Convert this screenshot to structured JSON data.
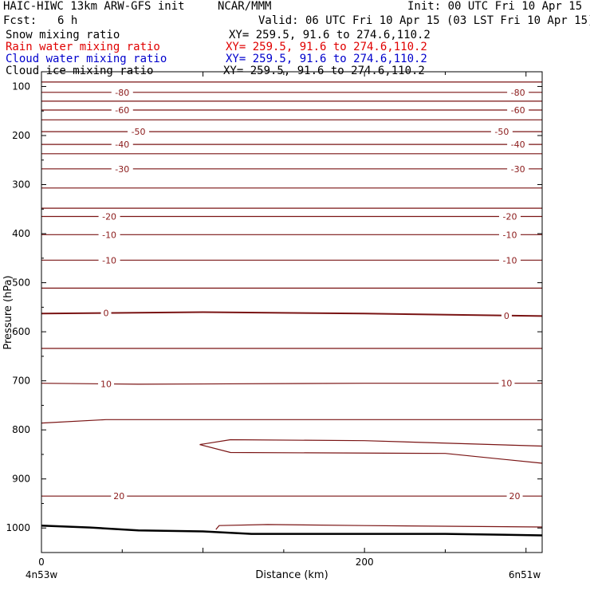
{
  "header": {
    "title_left": "HAIC-HIWC 13km ARW-GFS init",
    "title_center": "NCAR/MMM",
    "init": "Init: 00 UTC Fri 10 Apr 15",
    "fcst_label": "Fcst:",
    "fcst_value": "6 h",
    "valid": "Valid: 06 UTC Fri 10 Apr 15 (03 LST Fri 10 Apr 15)"
  },
  "legend": [
    {
      "name": "Snow mixing ratio",
      "xy": "XY= 259.5, 91.6 to 274.6,110.2",
      "color": "#000000"
    },
    {
      "name": "Rain water mixing ratio",
      "xy": "XY= 259.5, 91.6 to 274.6,110.2",
      "color": "#e00000"
    },
    {
      "name": "Cloud water mixing ratio",
      "xy": "XY= 259.5, 91.6 to 274.6,110.2",
      "color": "#0000cc"
    },
    {
      "name": "Cloud ice mixing ratio",
      "xy": "XY= 259.5, 91.6 to 274.6,110.2",
      "color": "#000000"
    }
  ],
  "chart_data": {
    "type": "line",
    "xlabel": "Distance (km)",
    "ylabel": "Pressure (hPa)",
    "xlim": [
      0,
      310
    ],
    "ylim": [
      1050,
      70
    ],
    "x_ticks": [
      0,
      200
    ],
    "y_ticks": [
      100,
      200,
      300,
      400,
      500,
      600,
      700,
      800,
      900,
      1000
    ],
    "x_endpoint_labels": {
      "left": "4n53w",
      "right": "6n51w"
    },
    "contour_color": "#7a1414",
    "ground_color": "#000000",
    "isotherms": [
      {
        "points": [
          [
            0,
            91
          ],
          [
            310,
            91
          ]
        ]
      },
      {
        "points": [
          [
            0,
            112
          ],
          [
            310,
            112
          ]
        ],
        "label": "-80",
        "label_x": [
          50,
          295
        ]
      },
      {
        "points": [
          [
            0,
            130
          ],
          [
            310,
            130
          ]
        ]
      },
      {
        "points": [
          [
            0,
            148
          ],
          [
            310,
            148
          ]
        ],
        "label": "-60",
        "label_x": [
          50,
          295
        ]
      },
      {
        "points": [
          [
            0,
            168
          ],
          [
            310,
            168
          ]
        ]
      },
      {
        "points": [
          [
            0,
            192
          ],
          [
            310,
            192
          ]
        ],
        "label": "-50",
        "label_x": [
          60,
          285
        ]
      },
      {
        "points": [
          [
            0,
            218
          ],
          [
            310,
            218
          ]
        ],
        "label": "-40",
        "label_x": [
          50,
          295
        ]
      },
      {
        "points": [
          [
            0,
            237
          ],
          [
            310,
            237
          ]
        ]
      },
      {
        "points": [
          [
            0,
            268
          ],
          [
            310,
            268
          ]
        ],
        "label": "-30",
        "label_x": [
          50,
          295
        ]
      },
      {
        "points": [
          [
            0,
            307
          ],
          [
            310,
            307
          ]
        ]
      },
      {
        "points": [
          [
            0,
            348
          ],
          [
            310,
            348
          ]
        ]
      },
      {
        "points": [
          [
            0,
            365
          ],
          [
            310,
            365
          ]
        ],
        "label": "-20",
        "label_x": [
          42,
          290
        ]
      },
      {
        "points": [
          [
            0,
            402
          ],
          [
            310,
            402
          ]
        ],
        "label": "-10",
        "label_x": [
          42,
          290
        ]
      },
      {
        "points": [
          [
            0,
            454
          ],
          [
            310,
            454
          ]
        ],
        "label": "-10",
        "label_x": [
          42,
          290
        ]
      },
      {
        "points": [
          [
            0,
            511
          ],
          [
            310,
            511
          ]
        ]
      },
      {
        "points": [
          [
            0,
            563
          ],
          [
            100,
            560
          ],
          [
            200,
            563
          ],
          [
            310,
            568
          ]
        ],
        "label": "0",
        "label_x": [
          40,
          288
        ],
        "bold": true
      },
      {
        "points": [
          [
            0,
            634
          ],
          [
            310,
            634
          ]
        ]
      },
      {
        "points": [
          [
            0,
            705
          ],
          [
            60,
            707
          ],
          [
            200,
            705
          ],
          [
            310,
            705
          ]
        ],
        "label": "10",
        "label_x": [
          40,
          288
        ]
      },
      {
        "points": [
          [
            0,
            786
          ],
          [
            40,
            779
          ],
          [
            310,
            779
          ]
        ]
      },
      {
        "points": [
          [
            0,
            935
          ],
          [
            310,
            935
          ]
        ],
        "label": "20",
        "label_x": [
          48,
          293
        ]
      },
      {
        "points": [
          [
            98,
            830
          ],
          [
            117,
            820
          ],
          [
            200,
            822
          ],
          [
            310,
            833
          ]
        ]
      },
      {
        "points": [
          [
            98,
            830
          ],
          [
            117,
            846
          ],
          [
            250,
            848
          ],
          [
            310,
            868
          ]
        ]
      },
      {
        "points": [
          [
            108,
            1003
          ],
          [
            110,
            995
          ],
          [
            140,
            993
          ],
          [
            200,
            995
          ],
          [
            310,
            998
          ]
        ]
      }
    ],
    "ground": [
      [
        0,
        995
      ],
      [
        30,
        999
      ],
      [
        60,
        1005
      ],
      [
        100,
        1007
      ],
      [
        130,
        1012
      ],
      [
        200,
        1012
      ],
      [
        250,
        1012
      ],
      [
        310,
        1015
      ]
    ]
  }
}
